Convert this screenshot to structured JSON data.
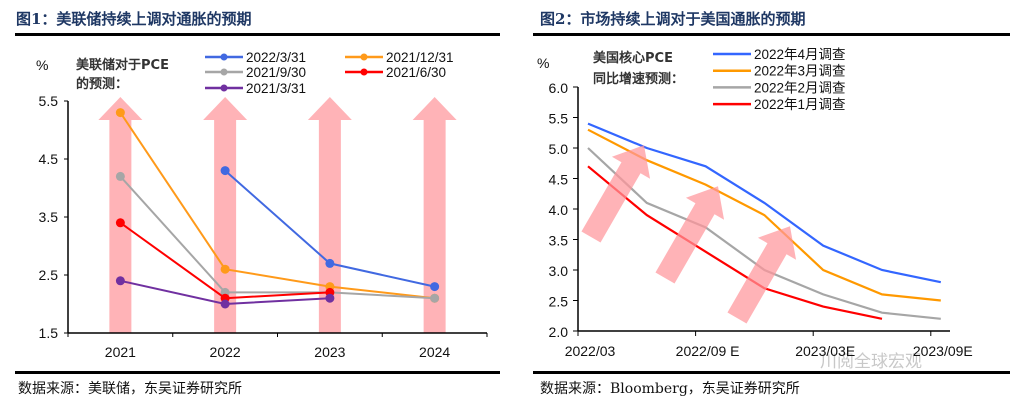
{
  "figure1": {
    "title": "图1：美联储持续上调对通胀的预期",
    "source": "数据来源：美联储，东吴证券研究所"
  },
  "figure2": {
    "title": "图2：市场持续上调对于美国通胀的预期",
    "source": "数据来源：Bloomberg，东吴证券研究所"
  },
  "watermark": "川阅全球宏观",
  "chart_data": [
    {
      "type": "line",
      "unit_label": "%",
      "legend_title": [
        "美联储对于PCE",
        "的预测："
      ],
      "categories": [
        "2021",
        "2022",
        "2023",
        "2024"
      ],
      "ylim": [
        1.5,
        5.5
      ],
      "yticks": [
        "5.5",
        "4.5",
        "3.5",
        "2.5",
        "1.5"
      ],
      "markers": true,
      "background_arrows": "pink upward arrows behind each year",
      "legend_placement": "top",
      "series": [
        {
          "name": "2022/3/31",
          "color": "#4169e1",
          "values": [
            null,
            4.3,
            2.7,
            2.3
          ]
        },
        {
          "name": "2021/12/31",
          "color": "#ff9a1a",
          "values": [
            5.3,
            2.6,
            2.3,
            2.1
          ]
        },
        {
          "name": "2021/9/30",
          "color": "#a6a6a6",
          "values": [
            4.2,
            2.2,
            2.2,
            2.1
          ]
        },
        {
          "name": "2021/6/30",
          "color": "#ff0000",
          "values": [
            3.4,
            2.1,
            2.2,
            null
          ]
        },
        {
          "name": "2021/3/31",
          "color": "#7030a0",
          "values": [
            2.4,
            2.0,
            2.1,
            null
          ]
        }
      ]
    },
    {
      "type": "line",
      "unit_label": "%",
      "legend_title": [
        "美国核心PCE",
        "同比增速预测："
      ],
      "x": [
        "2022Q1",
        "2022Q2",
        "2022Q3",
        "2022Q4",
        "2023Q1",
        "2023Q2",
        "2023Q3"
      ],
      "xtick_labels": [
        "2022/03",
        "2022/09 E",
        "2023/03E",
        "2023/09E"
      ],
      "ylim": [
        2.0,
        6.0
      ],
      "yticks": [
        "6.0",
        "5.5",
        "5.0",
        "4.5",
        "4.0",
        "3.5",
        "3.0",
        "2.5",
        "2.0"
      ],
      "markers": false,
      "background_arrows": "three pink diagonal upward arrows",
      "legend_placement": "top",
      "series": [
        {
          "name": "2022年4月调查",
          "color": "#3366ff",
          "values": [
            5.4,
            5.0,
            4.7,
            4.1,
            3.4,
            3.0,
            2.8
          ]
        },
        {
          "name": "2022年3月调查",
          "color": "#ff9900",
          "values": [
            5.3,
            4.8,
            4.4,
            3.9,
            3.0,
            2.6,
            2.5
          ]
        },
        {
          "name": "2022年2月调查",
          "color": "#a6a6a6",
          "values": [
            5.0,
            4.1,
            3.7,
            3.0,
            2.6,
            2.3,
            2.2
          ]
        },
        {
          "name": "2022年1月调查",
          "color": "#ff0000",
          "values": [
            4.7,
            3.9,
            3.3,
            2.7,
            2.4,
            2.2,
            null
          ]
        }
      ]
    }
  ]
}
